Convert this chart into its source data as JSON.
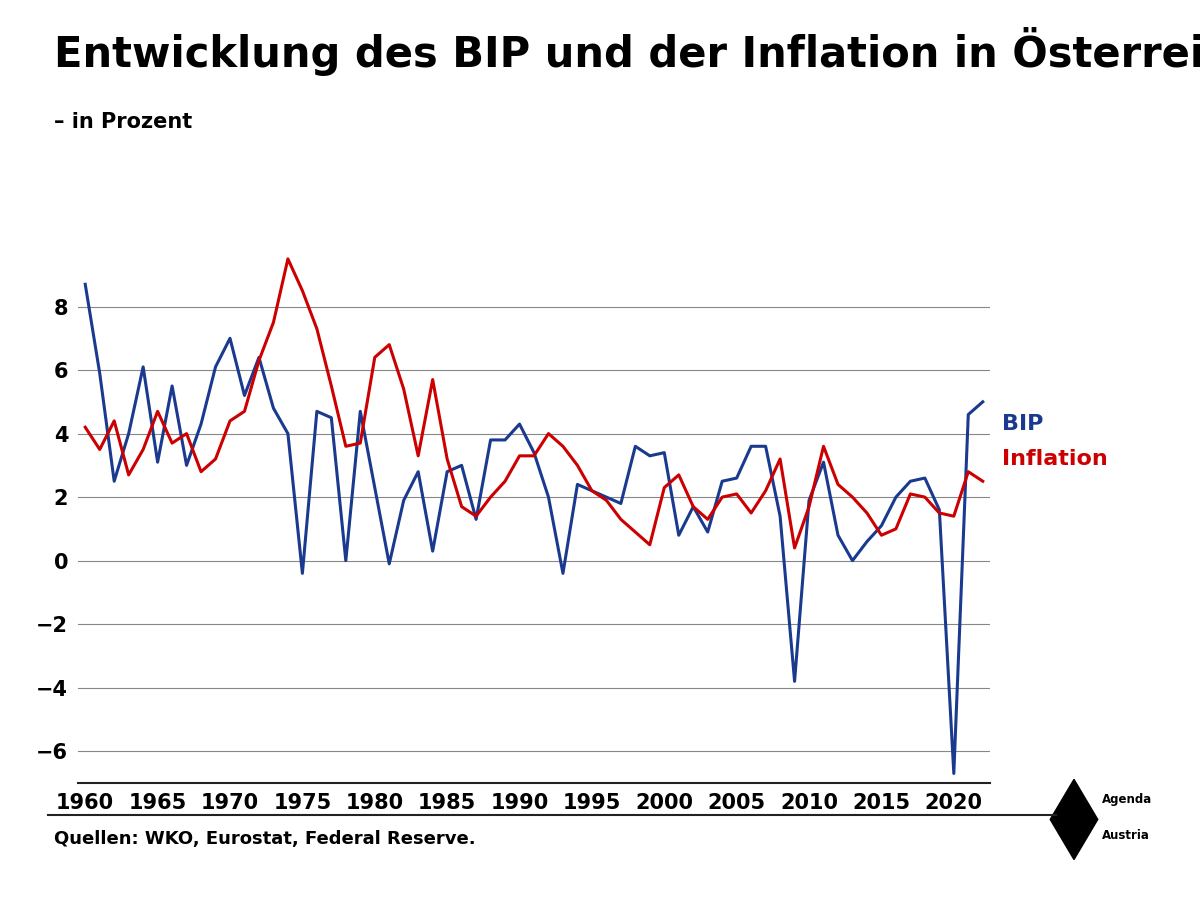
{
  "title": "Entwicklung des BIP und der Inflation in Österreich",
  "subtitle": "– in Prozent",
  "source": "Quellen: WKO, Eurostat, Federal Reserve.",
  "bip_label": "BIP",
  "inflation_label": "Inflation",
  "bip_color": "#1a3a8f",
  "inflation_color": "#cc0000",
  "years": [
    1960,
    1961,
    1962,
    1963,
    1964,
    1965,
    1966,
    1967,
    1968,
    1969,
    1970,
    1971,
    1972,
    1973,
    1974,
    1975,
    1976,
    1977,
    1978,
    1979,
    1980,
    1981,
    1982,
    1983,
    1984,
    1985,
    1986,
    1987,
    1988,
    1989,
    1990,
    1991,
    1992,
    1993,
    1994,
    1995,
    1996,
    1997,
    1998,
    1999,
    2000,
    2001,
    2002,
    2003,
    2004,
    2005,
    2006,
    2007,
    2008,
    2009,
    2010,
    2011,
    2012,
    2013,
    2014,
    2015,
    2016,
    2017,
    2018,
    2019,
    2020,
    2021,
    2022
  ],
  "bip": [
    8.7,
    5.9,
    2.5,
    4.0,
    6.1,
    3.1,
    5.5,
    3.0,
    4.3,
    6.1,
    7.0,
    5.2,
    6.4,
    4.8,
    4.0,
    -0.4,
    4.7,
    4.5,
    0.0,
    4.7,
    2.3,
    -0.1,
    1.9,
    2.8,
    0.3,
    2.8,
    3.0,
    1.3,
    3.8,
    3.8,
    4.3,
    3.4,
    2.0,
    -0.4,
    2.4,
    2.2,
    2.0,
    1.8,
    3.6,
    3.3,
    3.4,
    0.8,
    1.7,
    0.9,
    2.5,
    2.6,
    3.6,
    3.6,
    1.4,
    -3.8,
    1.9,
    3.1,
    0.8,
    0.0,
    0.6,
    1.1,
    2.0,
    2.5,
    2.6,
    1.6,
    -6.7,
    4.6,
    5.0
  ],
  "inflation": [
    4.2,
    3.5,
    4.4,
    2.7,
    3.5,
    4.7,
    3.7,
    4.0,
    2.8,
    3.2,
    4.4,
    4.7,
    6.3,
    7.5,
    9.5,
    8.5,
    7.3,
    5.5,
    3.6,
    3.7,
    6.4,
    6.8,
    5.4,
    3.3,
    5.7,
    3.2,
    1.7,
    1.4,
    2.0,
    2.5,
    3.3,
    3.3,
    4.0,
    3.6,
    3.0,
    2.2,
    1.9,
    1.3,
    0.9,
    0.5,
    2.3,
    2.7,
    1.7,
    1.3,
    2.0,
    2.1,
    1.5,
    2.2,
    3.2,
    0.4,
    1.7,
    3.6,
    2.4,
    2.0,
    1.5,
    0.8,
    1.0,
    2.1,
    2.0,
    1.5,
    1.4,
    2.8,
    2.5
  ],
  "xlim": [
    1959.5,
    2022.5
  ],
  "ylim": [
    -7,
    10
  ],
  "yticks": [
    -6,
    -4,
    -2,
    0,
    2,
    4,
    6,
    8
  ],
  "xticks": [
    1960,
    1965,
    1970,
    1975,
    1980,
    1985,
    1990,
    1995,
    2000,
    2005,
    2010,
    2015,
    2020
  ],
  "background_color": "#ffffff",
  "grid_color": "#888888",
  "line_width": 2.2,
  "title_fontsize": 30,
  "subtitle_fontsize": 15,
  "tick_fontsize": 15,
  "label_fontsize": 16,
  "source_fontsize": 13
}
